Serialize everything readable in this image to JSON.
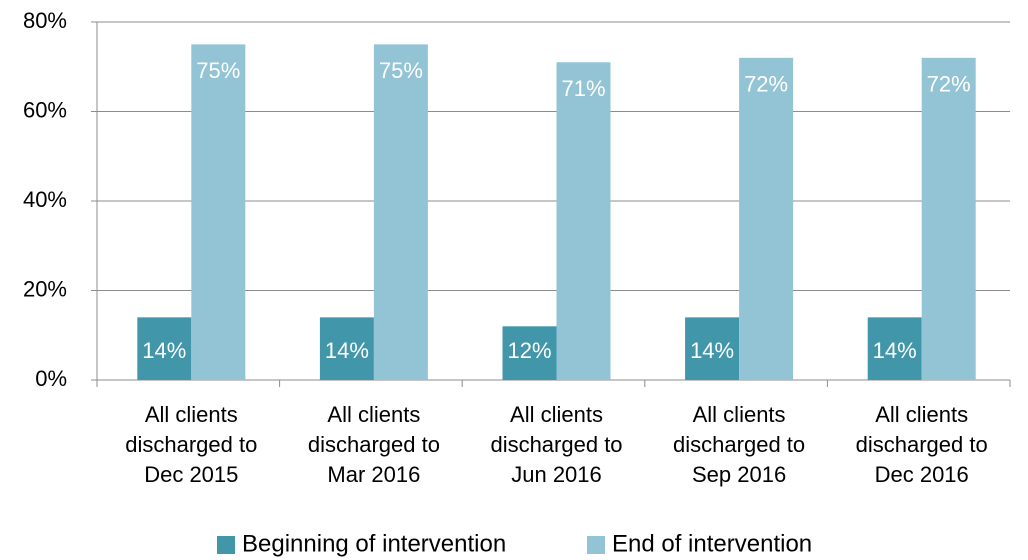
{
  "chart_data": {
    "type": "bar",
    "categories": [
      "All clients discharged to Dec 2015",
      "All clients discharged to Mar 2016",
      "All clients discharged to Jun 2016",
      "All clients discharged to Sep 2016",
      "All clients discharged to Dec 2016"
    ],
    "series": [
      {
        "name": "Beginning of intervention",
        "color": "#4196aa",
        "values": [
          14,
          14,
          12,
          14,
          14
        ],
        "value_labels": [
          "14%",
          "14%",
          "12%",
          "14%",
          "14%"
        ]
      },
      {
        "name": "End of intervention",
        "color": "#93c4d5",
        "values": [
          75,
          75,
          71,
          72,
          72
        ],
        "value_labels": [
          "75%",
          "75%",
          "71%",
          "72%",
          "72%"
        ]
      }
    ],
    "ylim": [
      0,
      80
    ],
    "yticks": [
      {
        "value": 0,
        "label": "0%"
      },
      {
        "value": 20,
        "label": "20%"
      },
      {
        "value": 40,
        "label": "40%"
      },
      {
        "value": 60,
        "label": "60%"
      },
      {
        "value": 80,
        "label": "80%"
      }
    ],
    "grid": true,
    "legend": "bottom"
  }
}
